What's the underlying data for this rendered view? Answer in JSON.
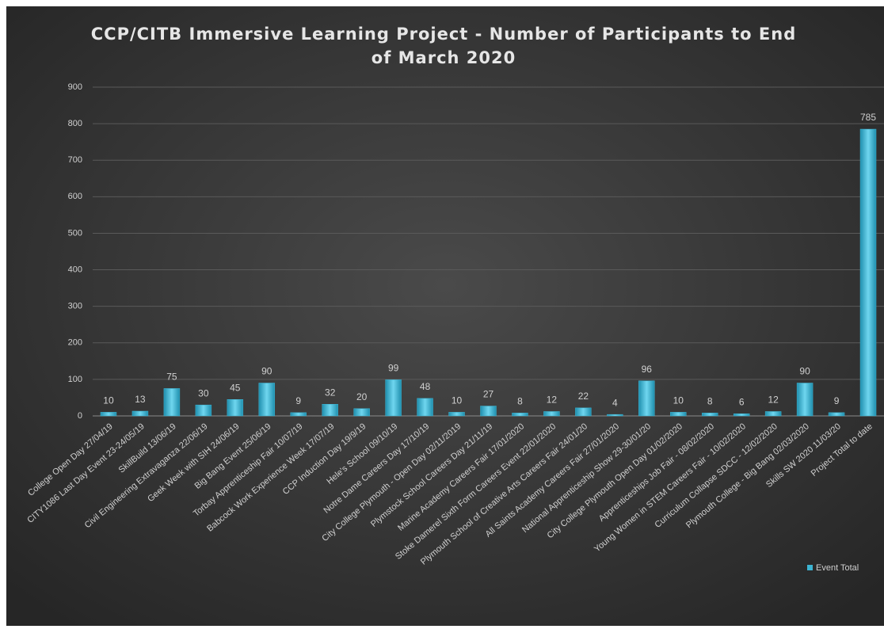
{
  "chart_data": {
    "type": "bar",
    "title": "CCP/CITB Immersive Learning Project - Number of Participants to End of March 2020",
    "categories": [
      "College Open Day 27/04/19",
      "CITY1086 Last Day Event 23-24/05/19",
      "SkillBuild 13/06/19",
      "Civil Engineering Extravaganza 22/06/19",
      "Geek Week with SIH 24/06/19",
      "Big Bang Event 25/06/19",
      "Torbay Apprenticeship Fair 10/07/19",
      "Babcock Work Experience Week 17/07/19",
      "CCP Induction Day 19/9/19",
      "Hele's School 09/10/19",
      "Notre Dame Careers Day 17/10/19",
      "City College Plymouth - Open Day 02/11/2019",
      "Plymstock School Careers Day 21/11/19",
      "Marine Academy Careers Fair 17/01/2020",
      "Stoke Damerel Sixth Form Careers Event 22/01/2020",
      "Plymouth School of Creative Arts Careers Fair 24/01/20",
      "All Saints Academy Careers Fair 27/01/2020",
      "National Apprenticeship Show 29-30/01/20",
      "City College Plymouth Open Day 01/02/2020",
      "Apprenticeships Job Fair - 08/02/2020",
      "Young Women in STEM Careers Fair - 10/02/2020",
      "Curriculum Collapse SDCC - 12/02/2020",
      "Plymouth College - Big Bang 02/03/2020",
      "Skills SW 2020 11/03/20",
      "Project Total to date"
    ],
    "series": [
      {
        "name": "Event Total",
        "color": "#3cb4d2",
        "values": [
          10,
          13,
          75,
          30,
          45,
          90,
          9,
          32,
          20,
          99,
          48,
          10,
          27,
          8,
          12,
          22,
          4,
          96,
          10,
          8,
          6,
          12,
          90,
          9,
          785
        ]
      }
    ],
    "ylim": [
      0,
      900
    ],
    "yticks": [
      0,
      100,
      200,
      300,
      400,
      500,
      600,
      700,
      800,
      900
    ],
    "grid": true,
    "legend": "bottom-right"
  }
}
